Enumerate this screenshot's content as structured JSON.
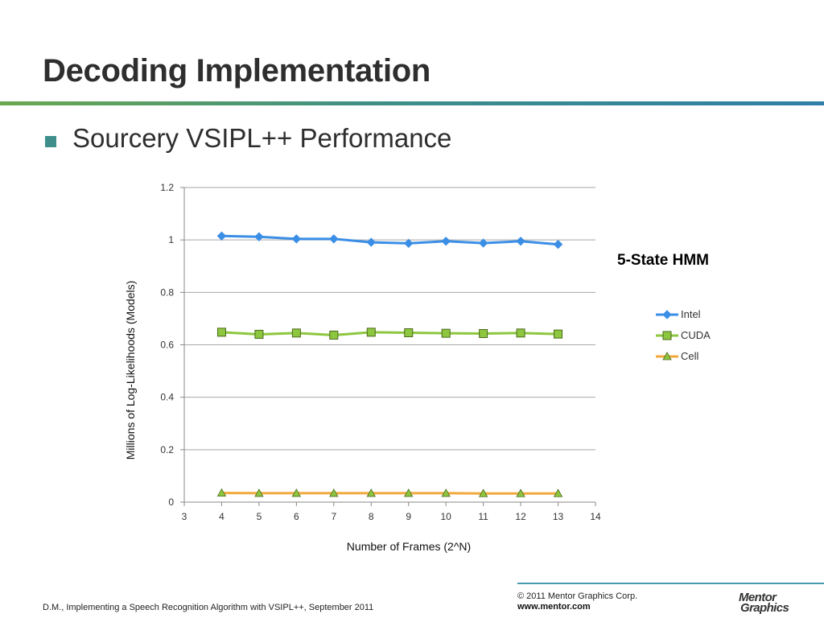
{
  "slide": {
    "title": "Decoding Implementation",
    "bullet": "Sourcery VSIPL++ Performance"
  },
  "footer": {
    "citation": "D.M., Implementing a Speech Recognition Algorithm with VSIPL++, September 2011",
    "copyright": "© 2011 Mentor Graphics Corp.",
    "url": "www.mentor.com",
    "logo_text": "Mentor Graphics"
  },
  "colors": {
    "intel": "#3a8ee6",
    "cuda": "#8dc63f",
    "cell": "#f2a93b",
    "bullet": "#3e8f8c",
    "rule": "#4a9bb0"
  },
  "chart_data": {
    "type": "line",
    "title": "",
    "annotation": "5-State HMM",
    "xlabel": "Number of Frames (2^N)",
    "ylabel": "Millions of Log-Likelihoods (Models)",
    "xlim": [
      3,
      14
    ],
    "ylim": [
      0,
      1.2
    ],
    "xticks": [
      3,
      4,
      5,
      6,
      7,
      8,
      9,
      10,
      11,
      12,
      13,
      14
    ],
    "yticks": [
      0,
      0.2,
      0.4,
      0.6,
      0.8,
      1,
      1.2
    ],
    "ytick_labels": [
      "0",
      "0.2",
      "0.4",
      "0.6",
      "0.8",
      "1",
      "1.2"
    ],
    "grid": true,
    "legend_position": "right",
    "x": [
      4,
      5,
      6,
      7,
      8,
      9,
      10,
      11,
      12,
      13
    ],
    "series": [
      {
        "name": "Intel",
        "marker": "diamond",
        "color": "#3a8ee6",
        "values": [
          1.015,
          1.012,
          1.004,
          1.004,
          0.991,
          0.987,
          0.995,
          0.988,
          0.995,
          0.983
        ]
      },
      {
        "name": "CUDA",
        "marker": "square",
        "color": "#8dc63f",
        "values": [
          0.648,
          0.64,
          0.645,
          0.637,
          0.648,
          0.646,
          0.644,
          0.643,
          0.645,
          0.641
        ]
      },
      {
        "name": "Cell",
        "marker": "triangle",
        "color": "#f2a93b",
        "values": [
          0.035,
          0.034,
          0.034,
          0.034,
          0.034,
          0.034,
          0.034,
          0.033,
          0.033,
          0.033
        ]
      }
    ]
  }
}
